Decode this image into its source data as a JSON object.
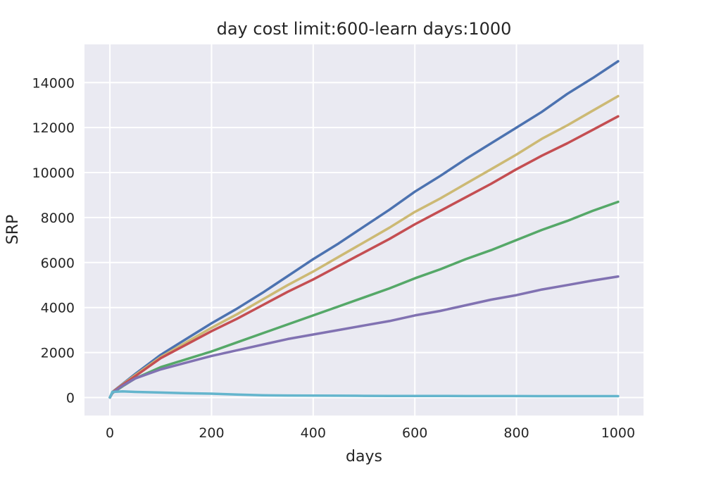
{
  "chart_data": {
    "type": "line",
    "title": "day cost limit:600-learn days:1000",
    "xlabel": "days",
    "ylabel": "SRP",
    "xlim": [
      -50,
      1050
    ],
    "ylim": [
      -800,
      15700
    ],
    "x_ticks": [
      0,
      200,
      400,
      600,
      800,
      1000
    ],
    "y_ticks": [
      0,
      2000,
      4000,
      6000,
      8000,
      10000,
      12000,
      14000
    ],
    "grid": true,
    "background": "#eaeaf2",
    "series": [
      {
        "color": "#4c72b0",
        "x": [
          0,
          5,
          25,
          50,
          100,
          150,
          200,
          250,
          300,
          350,
          400,
          450,
          500,
          550,
          600,
          650,
          700,
          750,
          800,
          850,
          900,
          950,
          1000
        ],
        "values": [
          0,
          250,
          600,
          1050,
          1900,
          2600,
          3300,
          3950,
          4650,
          5400,
          6150,
          6850,
          7600,
          8350,
          9150,
          9850,
          10600,
          11300,
          12000,
          12700,
          13500,
          14200,
          14950
        ]
      },
      {
        "color": "#ccb974",
        "x": [
          0,
          5,
          25,
          50,
          100,
          150,
          200,
          250,
          300,
          350,
          400,
          450,
          500,
          550,
          600,
          650,
          700,
          750,
          800,
          850,
          900,
          950,
          1000
        ],
        "values": [
          0,
          240,
          580,
          1000,
          1800,
          2450,
          3100,
          3700,
          4350,
          5000,
          5600,
          6250,
          6900,
          7550,
          8250,
          8850,
          9500,
          10150,
          10800,
          11500,
          12100,
          12750,
          13400
        ]
      },
      {
        "color": "#c44e52",
        "x": [
          0,
          5,
          25,
          50,
          100,
          150,
          200,
          250,
          300,
          350,
          400,
          450,
          500,
          550,
          600,
          650,
          700,
          750,
          800,
          850,
          900,
          950,
          1000
        ],
        "values": [
          0,
          230,
          560,
          950,
          1750,
          2350,
          2950,
          3500,
          4100,
          4700,
          5250,
          5850,
          6450,
          7050,
          7700,
          8300,
          8900,
          9500,
          10150,
          10750,
          11300,
          11900,
          12500
        ]
      },
      {
        "color": "#55a868",
        "x": [
          0,
          5,
          25,
          50,
          100,
          150,
          200,
          250,
          300,
          350,
          400,
          450,
          500,
          550,
          600,
          650,
          700,
          750,
          800,
          850,
          900,
          950,
          1000
        ],
        "values": [
          0,
          200,
          500,
          850,
          1350,
          1700,
          2050,
          2450,
          2850,
          3250,
          3650,
          4050,
          4450,
          4850,
          5300,
          5700,
          6150,
          6550,
          7000,
          7450,
          7850,
          8300,
          8700
        ]
      },
      {
        "color": "#8172b2",
        "x": [
          0,
          5,
          25,
          50,
          100,
          150,
          200,
          250,
          300,
          350,
          400,
          450,
          500,
          550,
          600,
          650,
          700,
          750,
          800,
          850,
          900,
          950,
          1000
        ],
        "values": [
          0,
          210,
          520,
          850,
          1250,
          1550,
          1850,
          2100,
          2350,
          2600,
          2800,
          3000,
          3200,
          3400,
          3650,
          3850,
          4100,
          4350,
          4550,
          4800,
          5000,
          5200,
          5380
        ]
      },
      {
        "color": "#64b5cd",
        "x": [
          0,
          5,
          25,
          50,
          100,
          150,
          200,
          250,
          300,
          350,
          400,
          450,
          500,
          550,
          600,
          650,
          700,
          750,
          800,
          850,
          900,
          950,
          1000
        ],
        "values": [
          0,
          250,
          270,
          250,
          220,
          190,
          170,
          130,
          100,
          90,
          85,
          80,
          75,
          70,
          70,
          70,
          65,
          65,
          65,
          60,
          60,
          60,
          60
        ]
      }
    ]
  }
}
